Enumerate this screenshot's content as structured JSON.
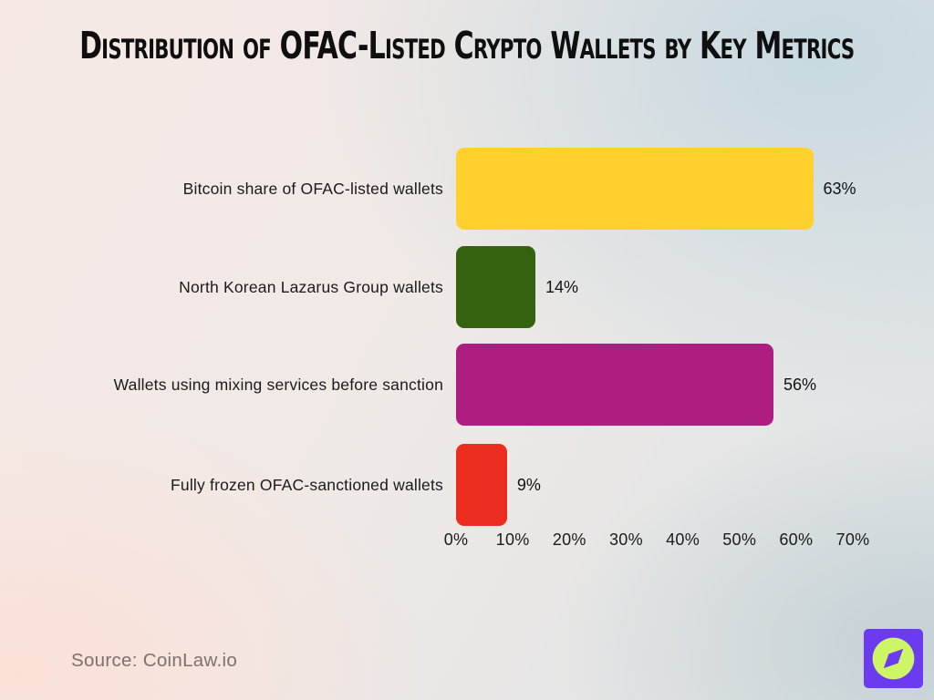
{
  "header": {
    "title": "Distribution of OFAC-Listed Crypto Wallets by Key Metrics"
  },
  "footer": {
    "source": "Source: CoinLaw.io"
  },
  "logo": {
    "name": "coinlaw-compass-logo",
    "background_color": "#6C3BF0",
    "circle_color": "#CDF566",
    "needle_color": "#6C3BF0"
  },
  "chart_data": {
    "type": "bar",
    "orientation": "horizontal",
    "title": "Distribution of OFAC-Listed Crypto Wallets by Key Metrics",
    "categories": [
      "Bitcoin share of OFAC-listed wallets",
      "North Korean Lazarus Group wallets",
      "Wallets using mixing services before sanction",
      "Fully frozen OFAC-sanctioned wallets"
    ],
    "values": [
      63,
      14,
      56,
      9
    ],
    "value_labels": [
      "63%",
      "14%",
      "56%",
      "9%"
    ],
    "bar_colors": [
      "#FFD02E",
      "#35620E",
      "#AD1E80",
      "#EA2D1E"
    ],
    "x_ticks": [
      "0%",
      "10%",
      "20%",
      "30%",
      "40%",
      "50%",
      "60%",
      "70%"
    ],
    "xlim": [
      0,
      70
    ],
    "xlabel": "",
    "ylabel": "",
    "grid": false,
    "legend": false
  }
}
